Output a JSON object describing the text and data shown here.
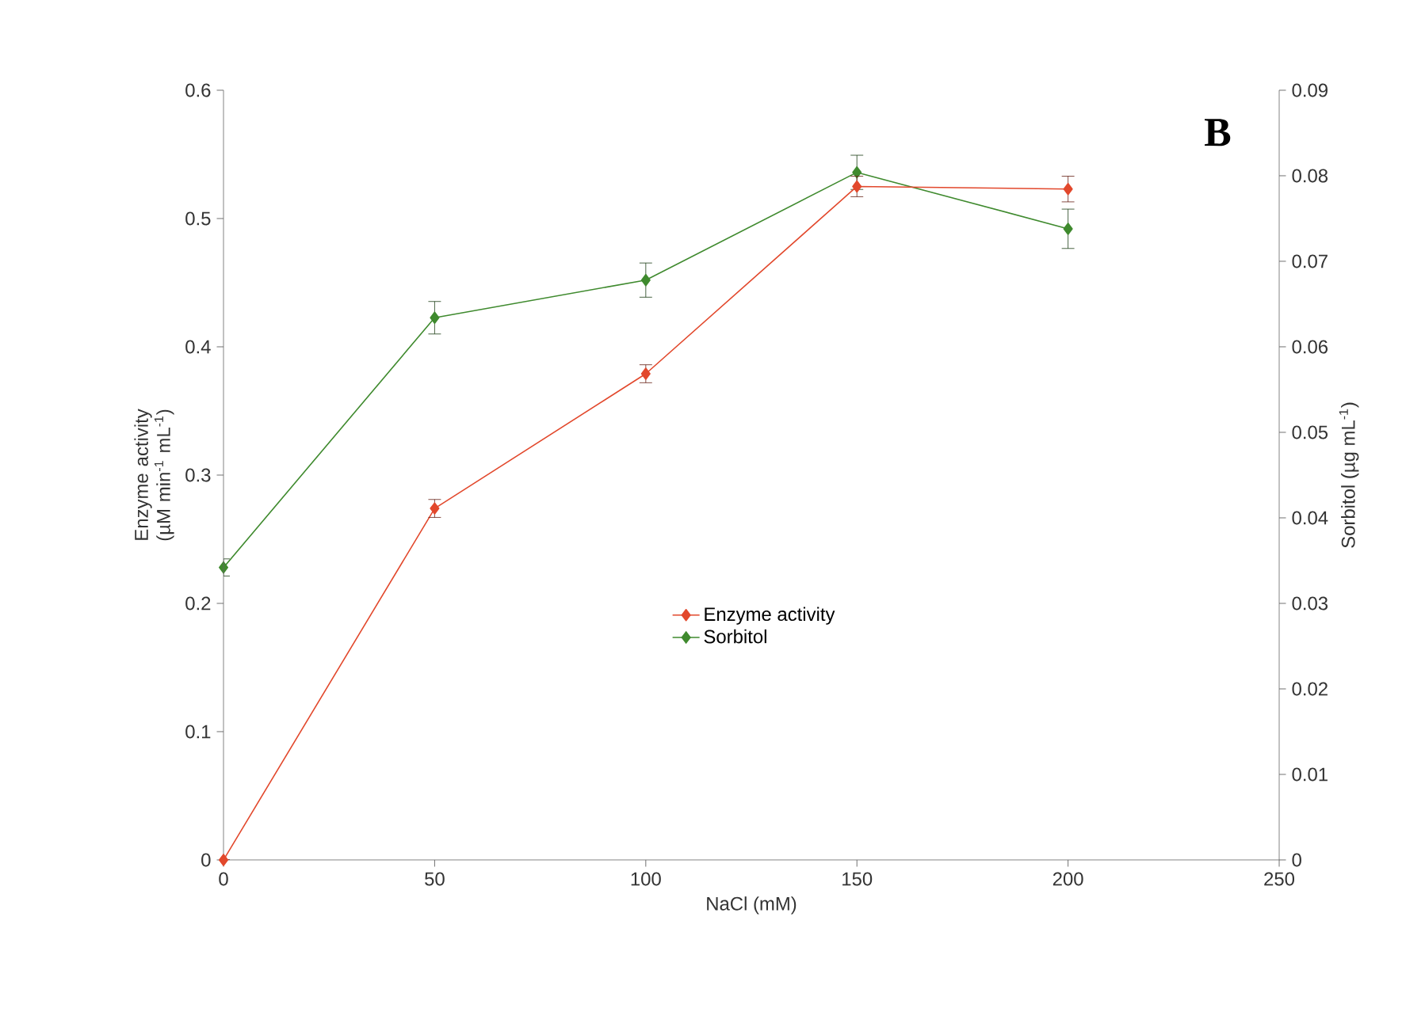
{
  "chart_data": {
    "type": "line",
    "xlabel": "NaCl (mM)",
    "ylabel": "Enzyme activity (µM min$^{-1}$ mL$^{-1}$)",
    "y2label": "Sorbitol (µg mL$^{-1}$)",
    "x": [
      0,
      50,
      100,
      150,
      200
    ],
    "series": [
      {
        "name": "Enzyme activity",
        "color": "#e2482c",
        "values": [
          0,
          0.274,
          0.379,
          0.525,
          0.523
        ],
        "errors": [
          null,
          0.007,
          0.007,
          0.008,
          0.01
        ]
      },
      {
        "name": "Sorbitol",
        "color": "#3f8a2e",
        "axis": "y2",
        "values": [
          0.0342,
          0.0634,
          0.0678,
          0.0804,
          0.0738
        ],
        "errors": [
          0.001,
          0.0019,
          0.002,
          0.002,
          0.0023
        ]
      }
    ],
    "xlim": [
      0,
      250
    ],
    "xticks": [
      0,
      50,
      100,
      150,
      200,
      250
    ],
    "ylim": [
      0,
      0.6
    ],
    "yticks": [
      0,
      0.1,
      0.2,
      0.3,
      0.4,
      0.5,
      0.6
    ],
    "y2lim": [
      0,
      0.09
    ],
    "y2ticks": [
      0,
      0.01,
      0.02,
      0.03,
      0.04,
      0.05,
      0.06,
      0.07,
      0.08,
      0.09
    ],
    "annotations": [
      "B"
    ],
    "legend": "center",
    "marker": "diamond",
    "line_style": "solid",
    "grid": false
  }
}
